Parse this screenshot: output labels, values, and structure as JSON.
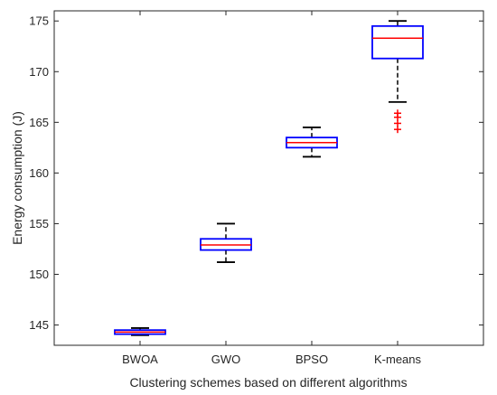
{
  "chart_data": {
    "type": "boxplot",
    "title": "",
    "xlabel": "Clustering schemes based on different algorithms",
    "ylabel": "Energy consumption (J)",
    "ylim": [
      143,
      176
    ],
    "yticks": [
      145,
      150,
      155,
      160,
      165,
      170,
      175
    ],
    "grid": false,
    "categories": [
      "BWOA",
      "GWO",
      "BPSO",
      "K-means"
    ],
    "boxes": [
      {
        "name": "BWOA",
        "whisker_low": 144.0,
        "q1": 144.1,
        "median": 144.3,
        "q3": 144.5,
        "whisker_high": 144.7,
        "outliers": []
      },
      {
        "name": "GWO",
        "whisker_low": 151.2,
        "q1": 152.4,
        "median": 152.9,
        "q3": 153.5,
        "whisker_high": 155.0,
        "outliers": []
      },
      {
        "name": "BPSO",
        "whisker_low": 161.6,
        "q1": 162.5,
        "median": 163.0,
        "q3": 163.5,
        "whisker_high": 164.5,
        "outliers": []
      },
      {
        "name": "K-means",
        "whisker_low": 167.0,
        "q1": 171.3,
        "median": 173.3,
        "q3": 174.5,
        "whisker_high": 175.0,
        "outliers": [
          164.3,
          164.9,
          165.5,
          165.9
        ]
      }
    ],
    "colors": {
      "box": "#0000ff",
      "median": "#ff0000",
      "whisker": "#000000",
      "outlier": "#ff0000",
      "axis": "#262626"
    }
  }
}
